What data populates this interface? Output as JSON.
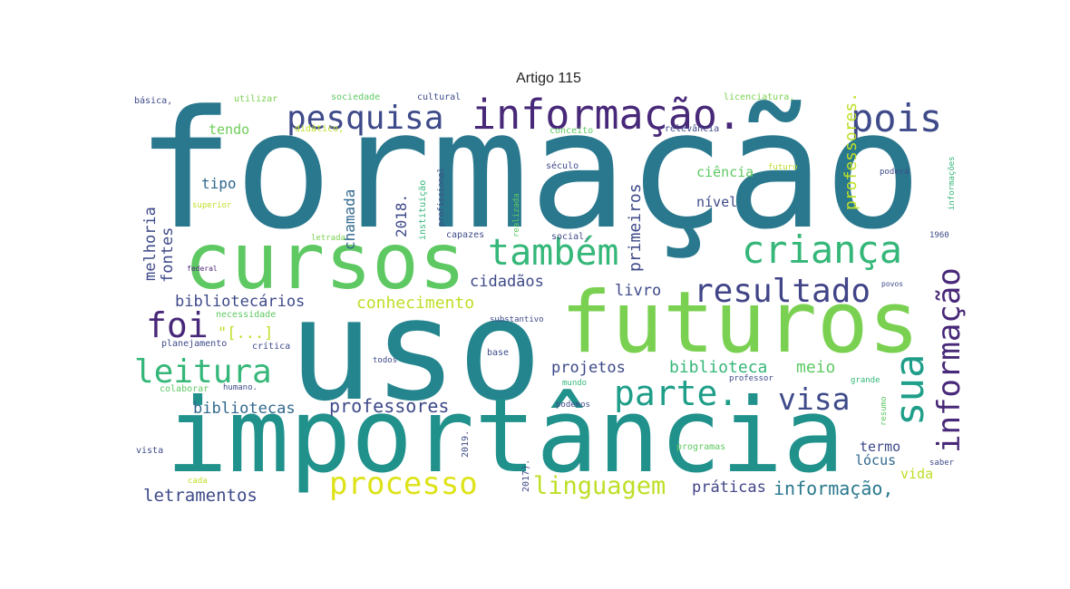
{
  "chart_data": {
    "type": "wordcloud",
    "title": "Artigo 115",
    "words": [
      {
        "text": "formação",
        "color": "#2a788e"
      },
      {
        "text": "uso",
        "color": "#25858e"
      },
      {
        "text": "importância",
        "color": "#21918c"
      },
      {
        "text": "cursos",
        "color": "#5ec962"
      },
      {
        "text": "futuros",
        "color": "#7ad151"
      },
      {
        "text": "informação.",
        "color": "#482878"
      },
      {
        "text": "pesquisa",
        "color": "#3e4a89"
      },
      {
        "text": "pois",
        "color": "#3e4a89"
      },
      {
        "text": "criança",
        "color": "#35b779"
      },
      {
        "text": "também",
        "color": "#35b779"
      },
      {
        "text": "resultado",
        "color": "#414487"
      },
      {
        "text": "foi",
        "color": "#482878"
      },
      {
        "text": "leitura",
        "color": "#35b779"
      },
      {
        "text": "parte.",
        "color": "#1f9e89"
      },
      {
        "text": "visa",
        "color": "#3e4a89"
      },
      {
        "text": "sua",
        "color": "#1f9e89"
      },
      {
        "text": "informação",
        "color": "#482878"
      },
      {
        "text": "processo",
        "color": "#dde318"
      },
      {
        "text": "linguagem",
        "color": "#bddf26"
      },
      {
        "text": "práticas",
        "color": "#414487"
      },
      {
        "text": "informação,",
        "color": "#2a788e"
      },
      {
        "text": "letramentos",
        "color": "#3e4a89"
      },
      {
        "text": "professores",
        "color": "#3e4a89"
      },
      {
        "text": "bibliotecas",
        "color": "#31688e"
      },
      {
        "text": "projetos",
        "color": "#3e4a89"
      },
      {
        "text": "biblioteca",
        "color": "#35b779"
      },
      {
        "text": "meio",
        "color": "#5ec962"
      },
      {
        "text": "livro",
        "color": "#3e4a89"
      },
      {
        "text": "conhecimento",
        "color": "#bddf26"
      },
      {
        "text": "cidadãos",
        "color": "#3e4a89"
      },
      {
        "text": "bibliotecários",
        "color": "#3e4a89"
      },
      {
        "text": "melhoria",
        "color": "#3e4a89"
      },
      {
        "text": "fontes",
        "color": "#3e4a89"
      },
      {
        "text": "chamada",
        "color": "#31688e"
      },
      {
        "text": "2018.",
        "color": "#3e4a89"
      },
      {
        "text": "primeiros",
        "color": "#3e4a89"
      },
      {
        "text": "professores.",
        "color": "#bddf26"
      },
      {
        "text": "tendo",
        "color": "#6ece58"
      },
      {
        "text": "tipo",
        "color": "#31688e"
      },
      {
        "text": "ciência",
        "color": "#5ec962"
      },
      {
        "text": "nível",
        "color": "#3e4a89"
      },
      {
        "text": "termo",
        "color": "#3e4a89"
      },
      {
        "text": "lócus",
        "color": "#31688e"
      },
      {
        "text": "vida",
        "color": "#bddf26"
      },
      {
        "text": "\"[...]",
        "color": "#bddf26"
      },
      {
        "text": "básica,",
        "color": "#3e4a89"
      },
      {
        "text": "utilizar",
        "color": "#7ad151"
      },
      {
        "text": "sociedade",
        "color": "#5ec962"
      },
      {
        "text": "cultural",
        "color": "#3e4a89"
      },
      {
        "text": "licenciatura,",
        "color": "#7ad151"
      },
      {
        "text": "didático,",
        "color": "#bddf26"
      },
      {
        "text": "conceito",
        "color": "#5ec962"
      },
      {
        "text": "relevância",
        "color": "#3e4a89"
      },
      {
        "text": "século",
        "color": "#3e4a89"
      },
      {
        "text": "futuro",
        "color": "#bddf26"
      },
      {
        "text": "poderá",
        "color": "#3e4a89"
      },
      {
        "text": "informações",
        "color": "#35b779"
      },
      {
        "text": "superior",
        "color": "#bddf26"
      },
      {
        "text": "instituição",
        "color": "#35b779"
      },
      {
        "text": "profissional",
        "color": "#3e4a89"
      },
      {
        "text": "realizada",
        "color": "#5ec962"
      },
      {
        "text": "social.",
        "color": "#3e4a89"
      },
      {
        "text": "capazes",
        "color": "#3e4a89"
      },
      {
        "text": "letrada",
        "color": "#7ad151"
      },
      {
        "text": "planejamento",
        "color": "#3e4a89"
      },
      {
        "text": "crítica",
        "color": "#3e4a89"
      },
      {
        "text": "necessidade",
        "color": "#5ec962"
      },
      {
        "text": "substantivo",
        "color": "#3e4a89"
      },
      {
        "text": "base",
        "color": "#3e4a89"
      },
      {
        "text": "todos",
        "color": "#3e4a89"
      },
      {
        "text": "mundo",
        "color": "#35b779"
      },
      {
        "text": "podemos",
        "color": "#3e4a89"
      },
      {
        "text": "professor",
        "color": "#3e4a89"
      },
      {
        "text": "grande",
        "color": "#35b779"
      },
      {
        "text": "colaborar",
        "color": "#5ec962"
      },
      {
        "text": "humano.",
        "color": "#3e4a89"
      },
      {
        "text": "resumo",
        "color": "#5ec962"
      },
      {
        "text": "saber",
        "color": "#3e4a89"
      },
      {
        "text": "vista",
        "color": "#3e4a89"
      },
      {
        "text": "2019.",
        "color": "#3e4a89"
      },
      {
        "text": "2017).",
        "color": "#3e4a89"
      },
      {
        "text": "programas",
        "color": "#5ec962"
      },
      {
        "text": "cada",
        "color": "#bddf26"
      },
      {
        "text": "povos",
        "color": "#3e4a89"
      },
      {
        "text": "federal",
        "color": "#482878"
      },
      {
        "text": "1960",
        "color": "#3e4a89"
      }
    ]
  }
}
